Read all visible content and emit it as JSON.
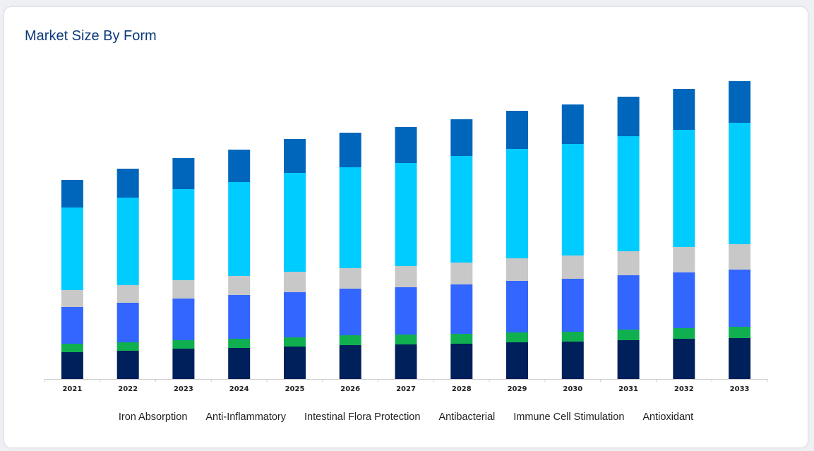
{
  "header": {
    "title": "Market Size By Form"
  },
  "chart_data": {
    "type": "bar",
    "stacked": true,
    "title": "Market Size By Form",
    "categories": [
      "2021",
      "2022",
      "2023",
      "2024",
      "2025",
      "2026",
      "2027",
      "2028",
      "2029",
      "2030",
      "2031",
      "2032",
      "2033"
    ],
    "ylim": [
      0,
      425
    ],
    "grid": false,
    "legend_position": "bottom",
    "series": [
      {
        "name": "Iron Absorption",
        "color": "#00205b",
        "values": [
          38,
          40,
          43,
          44,
          46,
          48,
          49,
          50,
          52,
          53,
          55,
          57,
          58
        ]
      },
      {
        "name": "Anti-Inflammatory",
        "color": "#10b050",
        "values": [
          12,
          12,
          12,
          13,
          13,
          14,
          14,
          14,
          14,
          14,
          15,
          15,
          16
        ]
      },
      {
        "name": "Intestinal Flora Protection",
        "color": "#3366ff",
        "values": [
          52,
          56,
          59,
          62,
          64,
          66,
          67,
          70,
          73,
          75,
          77,
          79,
          81
        ]
      },
      {
        "name": "Antibacterial",
        "color": "#c8c8c8",
        "values": [
          24,
          25,
          26,
          27,
          29,
          29,
          30,
          31,
          32,
          33,
          34,
          36,
          36
        ]
      },
      {
        "name": "Immune Cell Stimulation",
        "color": "#00ccff",
        "values": [
          117,
          124,
          129,
          133,
          140,
          143,
          146,
          151,
          155,
          158,
          163,
          166,
          172
        ]
      },
      {
        "name": "Antioxidant",
        "color": "#0066bb",
        "values": [
          39,
          41,
          44,
          46,
          48,
          49,
          51,
          52,
          54,
          56,
          56,
          58,
          59
        ]
      }
    ]
  }
}
